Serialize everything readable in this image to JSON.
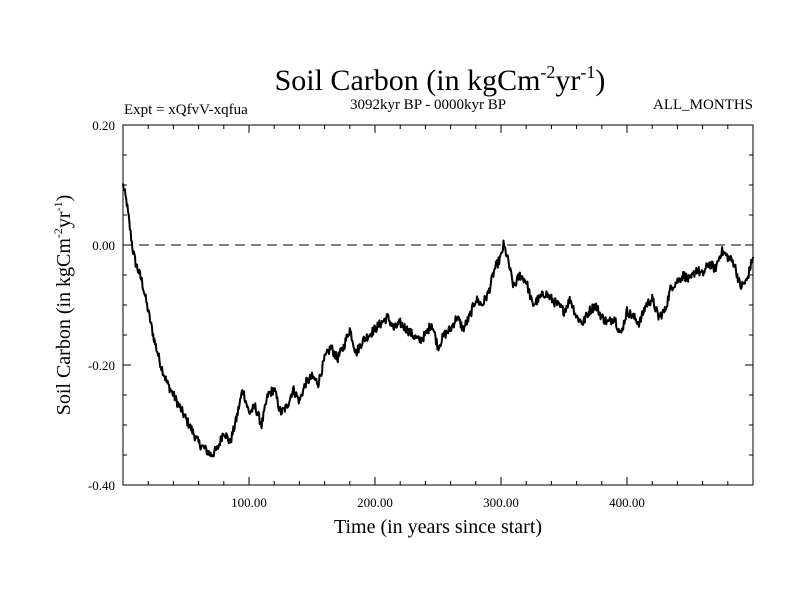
{
  "chart_data": {
    "type": "line",
    "title": {
      "main": "Soil Carbon (in kgCm",
      "sup1": "-2",
      "mid": "yr",
      "sup2": "-1",
      "end": ")"
    },
    "subtitle_left": "Expt = xQfvV-xqfua",
    "subtitle_center": "3092kyr BP - 0000kyr BP",
    "subtitle_right": "ALL_MONTHS",
    "xlabel": "Time (in years since start)",
    "ylabel": {
      "main": "Soil Carbon (in kgCm",
      "sup1": "-2",
      "mid": "yr",
      "sup2": "-1",
      "end": ")"
    },
    "xlim": [
      0,
      500
    ],
    "ylim": [
      -0.4,
      0.2
    ],
    "xticks": [
      100,
      200,
      300,
      400
    ],
    "xtick_labels": [
      "100.00",
      "200.00",
      "300.00",
      "400.00"
    ],
    "yticks": [
      -0.4,
      -0.2,
      0.0,
      0.2
    ],
    "ytick_labels": [
      "-0.40",
      "-0.20",
      "0.00",
      "0.20"
    ],
    "reference_line": {
      "y": 0.0,
      "style": "dashed"
    },
    "series": [
      {
        "name": "Soil Carbon",
        "color": "#000000",
        "x": [
          0,
          3,
          6,
          8,
          10,
          15,
          20,
          25,
          30,
          35,
          40,
          45,
          50,
          55,
          60,
          65,
          70,
          75,
          80,
          85,
          90,
          95,
          100,
          105,
          110,
          115,
          120,
          125,
          130,
          135,
          140,
          145,
          150,
          155,
          160,
          165,
          170,
          175,
          180,
          185,
          190,
          195,
          200,
          205,
          210,
          215,
          220,
          225,
          230,
          235,
          240,
          245,
          250,
          255,
          260,
          265,
          270,
          275,
          280,
          285,
          290,
          295,
          300,
          302,
          305,
          310,
          315,
          320,
          325,
          330,
          335,
          340,
          345,
          350,
          355,
          360,
          365,
          370,
          375,
          380,
          385,
          390,
          395,
          400,
          405,
          410,
          415,
          420,
          425,
          430,
          435,
          440,
          445,
          450,
          455,
          460,
          465,
          470,
          475,
          480,
          485,
          490,
          495,
          500
        ],
        "y": [
          0.1,
          0.07,
          0.02,
          -0.01,
          -0.03,
          -0.06,
          -0.11,
          -0.16,
          -0.2,
          -0.23,
          -0.25,
          -0.27,
          -0.29,
          -0.31,
          -0.33,
          -0.34,
          -0.35,
          -0.34,
          -0.31,
          -0.33,
          -0.29,
          -0.24,
          -0.28,
          -0.27,
          -0.3,
          -0.25,
          -0.24,
          -0.28,
          -0.27,
          -0.24,
          -0.26,
          -0.23,
          -0.22,
          -0.23,
          -0.19,
          -0.17,
          -0.19,
          -0.17,
          -0.14,
          -0.18,
          -0.16,
          -0.15,
          -0.14,
          -0.13,
          -0.12,
          -0.14,
          -0.13,
          -0.14,
          -0.15,
          -0.16,
          -0.15,
          -0.13,
          -0.17,
          -0.15,
          -0.14,
          -0.12,
          -0.14,
          -0.12,
          -0.09,
          -0.1,
          -0.08,
          -0.04,
          -0.02,
          0.0,
          -0.02,
          -0.07,
          -0.05,
          -0.06,
          -0.1,
          -0.09,
          -0.08,
          -0.09,
          -0.1,
          -0.11,
          -0.09,
          -0.12,
          -0.13,
          -0.11,
          -0.1,
          -0.12,
          -0.13,
          -0.12,
          -0.15,
          -0.11,
          -0.12,
          -0.13,
          -0.1,
          -0.09,
          -0.12,
          -0.11,
          -0.07,
          -0.06,
          -0.05,
          -0.06,
          -0.04,
          -0.05,
          -0.03,
          -0.04,
          -0.01,
          -0.02,
          -0.03,
          -0.07,
          -0.06,
          -0.02
        ]
      }
    ]
  }
}
